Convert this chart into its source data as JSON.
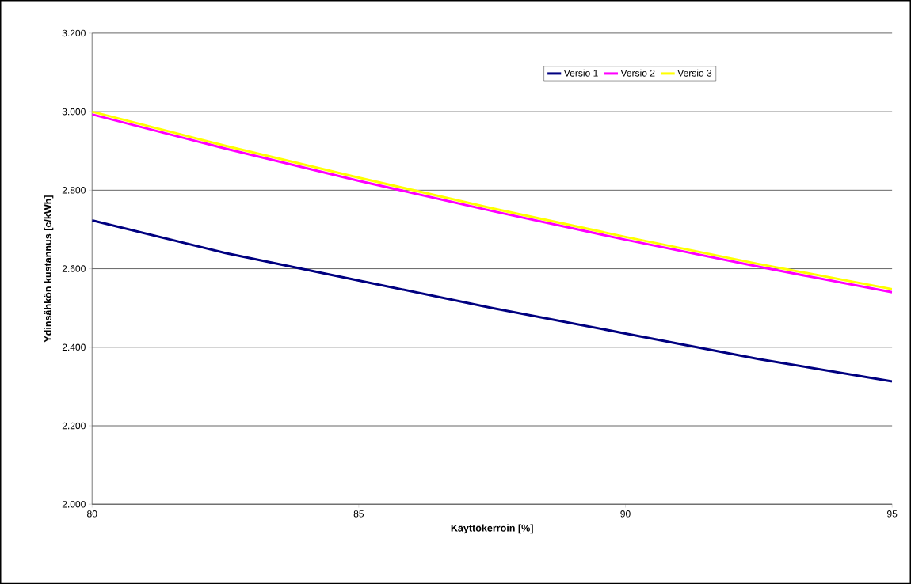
{
  "chart_data": {
    "type": "line",
    "xlabel": "Käyttökerroin [%]",
    "ylabel": "Ydinsähkön kustannus [c/kWh]",
    "x": [
      80,
      82.5,
      85,
      87.5,
      90,
      92.5,
      95
    ],
    "series": [
      {
        "name": "Versio 1",
        "color": "#000080",
        "values": [
          2.723,
          2.64,
          2.57,
          2.5,
          2.435,
          2.37,
          2.313
        ]
      },
      {
        "name": "Versio 2",
        "color": "#ff00ff",
        "values": [
          2.993,
          2.906,
          2.824,
          2.747,
          2.674,
          2.605,
          2.54
        ]
      },
      {
        "name": "Versio 3",
        "color": "#ffff00",
        "values": [
          3.0,
          2.913,
          2.832,
          2.754,
          2.681,
          2.612,
          2.548
        ]
      }
    ],
    "xlim": [
      80,
      95
    ],
    "ylim": [
      2.0,
      3.2
    ],
    "xticks": [
      80,
      85,
      90,
      95
    ],
    "yticks": [
      {
        "value": 2.0,
        "label": "2.000"
      },
      {
        "value": 2.2,
        "label": "2.200"
      },
      {
        "value": 2.4,
        "label": "2.400"
      },
      {
        "value": 2.6,
        "label": "2.600"
      },
      {
        "value": 2.8,
        "label": "2.800"
      },
      {
        "value": 3.0,
        "label": "3.000"
      },
      {
        "value": 3.2,
        "label": "3.200"
      }
    ],
    "grid": "y",
    "legend": "top right",
    "marker": "none",
    "line_style": "solid"
  }
}
